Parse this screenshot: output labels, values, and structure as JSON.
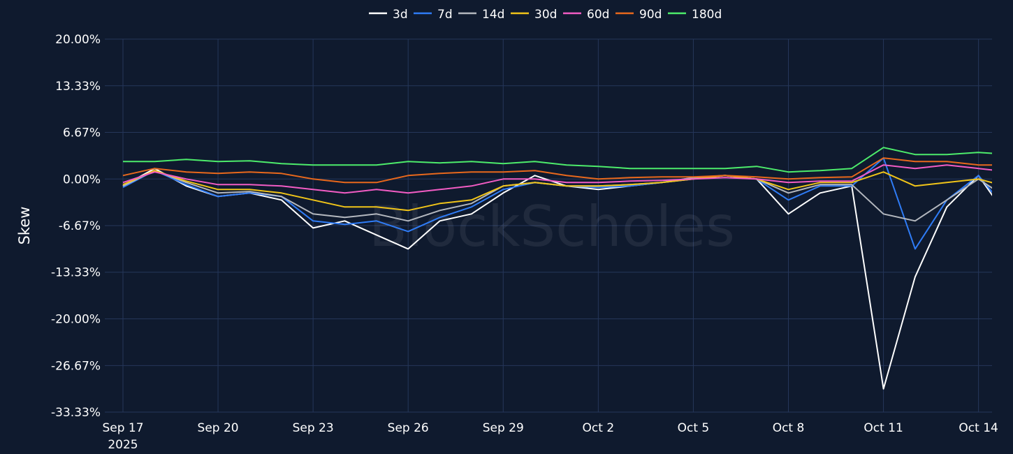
{
  "chart_data": {
    "type": "line",
    "watermark": "BlockScholes",
    "ylabel": "Skew",
    "ylim": [
      -33.33,
      20.0
    ],
    "yticks": [
      "20.00%",
      "13.33%",
      "6.67%",
      "0.00%",
      "-6.67%",
      "-13.33%",
      "-20.00%",
      "-26.67%",
      "-33.33%"
    ],
    "ytick_values": [
      20.0,
      13.33,
      6.67,
      0.0,
      -6.67,
      -13.33,
      -20.0,
      -26.67,
      -33.33
    ],
    "xlim": [
      "2025-09-17",
      "2025-10-15"
    ],
    "xticks": [
      {
        "label": "Sep 17",
        "sub": "2025",
        "date": "2025-09-17"
      },
      {
        "label": "Sep 20",
        "date": "2025-09-20"
      },
      {
        "label": "Sep 23",
        "date": "2025-09-23"
      },
      {
        "label": "Sep 26",
        "date": "2025-09-26"
      },
      {
        "label": "Sep 29",
        "date": "2025-09-29"
      },
      {
        "label": "Oct 2",
        "date": "2025-10-02"
      },
      {
        "label": "Oct 5",
        "date": "2025-10-05"
      },
      {
        "label": "Oct 8",
        "date": "2025-10-08"
      },
      {
        "label": "Oct 11",
        "date": "2025-10-11"
      },
      {
        "label": "Oct 14",
        "date": "2025-10-14"
      }
    ],
    "grid": true,
    "legend_position": "top-center",
    "x": [
      "2025-09-17",
      "2025-09-18",
      "2025-09-19",
      "2025-09-20",
      "2025-09-21",
      "2025-09-22",
      "2025-09-23",
      "2025-09-24",
      "2025-09-25",
      "2025-09-26",
      "2025-09-27",
      "2025-09-28",
      "2025-09-29",
      "2025-09-30",
      "2025-10-01",
      "2025-10-02",
      "2025-10-03",
      "2025-10-04",
      "2025-10-05",
      "2025-10-06",
      "2025-10-07",
      "2025-10-08",
      "2025-10-09",
      "2025-10-10",
      "2025-10-11",
      "2025-10-12",
      "2025-10-13",
      "2025-10-14",
      "2025-10-15"
    ],
    "series": [
      {
        "name": "3d",
        "color": "#ffffff",
        "values": [
          -1.0,
          1.5,
          -1.0,
          -2.5,
          -2.0,
          -3.0,
          -7.0,
          -6.0,
          -8.0,
          -10.0,
          -6.0,
          -5.0,
          -2.0,
          0.5,
          -1.0,
          -1.5,
          -1.0,
          -0.5,
          0.0,
          0.5,
          0.0,
          -5.0,
          -2.0,
          -1.0,
          -30.0,
          -14.0,
          -4.0,
          0.5,
          -6.0
        ]
      },
      {
        "name": "7d",
        "color": "#2f7cf6",
        "values": [
          -1.2,
          1.2,
          -0.8,
          -2.5,
          -2.0,
          -2.5,
          -6.0,
          -6.5,
          -6.0,
          -7.5,
          -5.5,
          -4.0,
          -1.5,
          -0.5,
          -1.0,
          -1.2,
          -1.0,
          -0.5,
          0.2,
          0.5,
          0.0,
          -3.0,
          -1.0,
          -1.0,
          3.0,
          -10.0,
          -3.0,
          0.5,
          -5.0
        ]
      },
      {
        "name": "14d",
        "color": "#b4b8bf",
        "values": [
          -1.0,
          1.2,
          -0.5,
          -2.0,
          -1.8,
          -2.5,
          -5.0,
          -5.5,
          -5.0,
          -6.0,
          -4.5,
          -3.5,
          -1.0,
          -0.5,
          -1.0,
          -1.0,
          -0.8,
          -0.5,
          0.2,
          0.5,
          0.0,
          -2.0,
          -0.8,
          -0.8,
          -5.0,
          -6.0,
          -3.0,
          0.0,
          -3.0
        ]
      },
      {
        "name": "30d",
        "color": "#f0c419",
        "values": [
          -0.8,
          1.2,
          -0.3,
          -1.5,
          -1.5,
          -2.0,
          -3.0,
          -4.0,
          -4.0,
          -4.5,
          -3.5,
          -3.0,
          -1.0,
          -0.5,
          -1.0,
          -1.0,
          -0.8,
          -0.5,
          0.0,
          0.5,
          0.0,
          -1.5,
          -0.5,
          -0.5,
          1.0,
          -1.0,
          -0.5,
          0.0,
          -1.2
        ]
      },
      {
        "name": "60d",
        "color": "#f25cc4",
        "values": [
          -0.5,
          1.0,
          0.0,
          -0.8,
          -0.8,
          -1.0,
          -1.5,
          -2.0,
          -1.5,
          -2.0,
          -1.5,
          -1.0,
          0.0,
          0.0,
          -0.5,
          -0.5,
          -0.3,
          -0.2,
          0.0,
          0.2,
          0.0,
          -0.5,
          -0.3,
          -0.3,
          2.0,
          1.5,
          2.0,
          1.5,
          1.0
        ]
      },
      {
        "name": "90d",
        "color": "#e8681c",
        "values": [
          0.5,
          1.5,
          1.0,
          0.8,
          1.0,
          0.8,
          0.0,
          -0.5,
          -0.5,
          0.5,
          0.8,
          1.0,
          1.0,
          1.2,
          0.5,
          0.0,
          0.2,
          0.3,
          0.3,
          0.5,
          0.3,
          0.0,
          0.2,
          0.3,
          3.0,
          2.5,
          2.5,
          2.0,
          2.0
        ]
      },
      {
        "name": "180d",
        "color": "#4dec6b",
        "values": [
          2.5,
          2.5,
          2.8,
          2.5,
          2.6,
          2.2,
          2.0,
          2.0,
          2.0,
          2.5,
          2.3,
          2.5,
          2.2,
          2.5,
          2.0,
          1.8,
          1.5,
          1.5,
          1.5,
          1.5,
          1.8,
          1.0,
          1.2,
          1.5,
          4.5,
          3.5,
          3.5,
          3.8,
          3.5
        ]
      }
    ]
  }
}
